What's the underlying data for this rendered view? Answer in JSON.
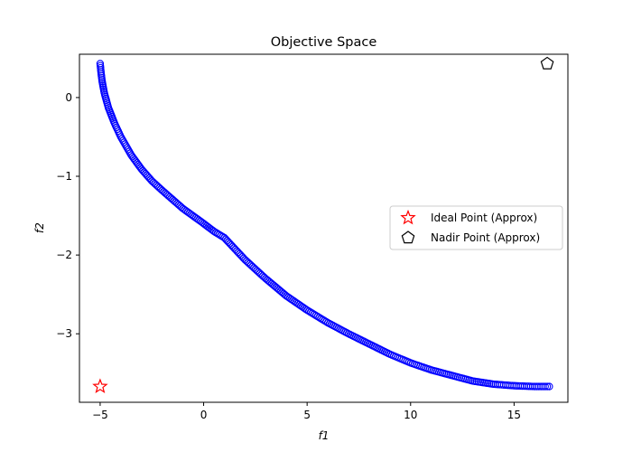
{
  "chart_data": {
    "type": "scatter",
    "title": "Objective Space",
    "xlabel": "f1",
    "ylabel": "f2",
    "xlim": [
      -6.0,
      17.6
    ],
    "ylim": [
      -3.87,
      0.55
    ],
    "xticks": [
      -5,
      0,
      5,
      10,
      15
    ],
    "yticks": [
      0,
      -1,
      -2,
      -3
    ],
    "xtick_labels": [
      "−5",
      "0",
      "5",
      "10",
      "15"
    ],
    "ytick_labels": [
      "0",
      "−1",
      "−2",
      "−3"
    ],
    "grid": false,
    "legend_position": "center-right",
    "colors": {
      "front": "#0000ff",
      "ideal": "#ff0000",
      "nadir": "#000000"
    },
    "front_curve": [
      [
        -5.0,
        0.43
      ],
      [
        -4.95,
        0.3
      ],
      [
        -4.9,
        0.2
      ],
      [
        -4.8,
        0.06
      ],
      [
        -4.6,
        -0.13
      ],
      [
        -4.3,
        -0.33
      ],
      [
        -4.0,
        -0.5
      ],
      [
        -3.5,
        -0.73
      ],
      [
        -3.0,
        -0.91
      ],
      [
        -2.5,
        -1.06
      ],
      [
        -2.0,
        -1.18
      ],
      [
        -1.0,
        -1.41
      ],
      [
        0.0,
        -1.6
      ],
      [
        0.5,
        -1.7
      ],
      [
        1.0,
        -1.78
      ],
      [
        2.0,
        -2.06
      ],
      [
        3.0,
        -2.3
      ],
      [
        4.0,
        -2.52
      ],
      [
        5.0,
        -2.7
      ],
      [
        6.0,
        -2.86
      ],
      [
        7.0,
        -3.0
      ],
      [
        8.0,
        -3.13
      ],
      [
        9.0,
        -3.26
      ],
      [
        10.0,
        -3.37
      ],
      [
        11.0,
        -3.46
      ],
      [
        12.0,
        -3.53
      ],
      [
        13.0,
        -3.6
      ],
      [
        14.0,
        -3.64
      ],
      [
        15.0,
        -3.66
      ],
      [
        16.0,
        -3.67
      ],
      [
        16.7,
        -3.67
      ]
    ],
    "series": [
      {
        "name": "Ideal Point (Approx)",
        "marker": "star",
        "x": -5.0,
        "y": -3.67
      },
      {
        "name": "Nadir Point (Approx)",
        "marker": "pentagon",
        "x": 16.6,
        "y": 0.43
      }
    ]
  }
}
